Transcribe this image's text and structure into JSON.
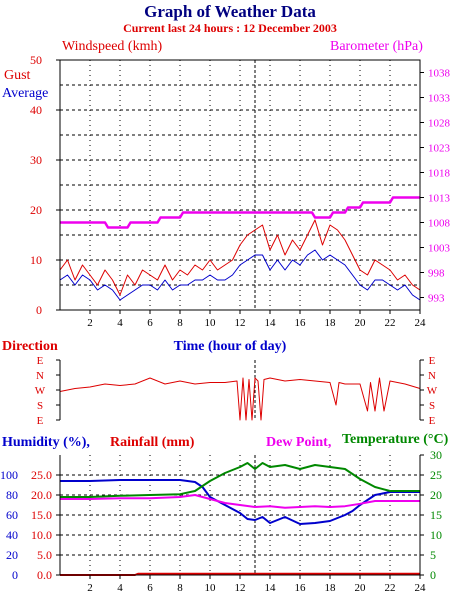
{
  "header": {
    "title": "Graph of Weather Data",
    "subtitle": "Current last 24 hours : 12 December 2003"
  },
  "colors": {
    "red": "#dd0000",
    "blue": "#0000cc",
    "magenta": "#ee00ee",
    "green": "#008800",
    "title_navy": "#000080"
  },
  "chart_data": [
    {
      "type": "line",
      "panel": "wind",
      "title": "",
      "left_label": "Windspeed (kmh)",
      "right_label": "Barometer (hPa)",
      "legend": [
        "Gust",
        "Average"
      ],
      "xlabel": "Time (hour of day)",
      "xlim": [
        0,
        24
      ],
      "x_ticks": [
        2,
        4,
        6,
        8,
        10,
        12,
        14,
        16,
        18,
        20,
        22,
        24
      ],
      "ylim": [
        0,
        50
      ],
      "y_ticks": [
        0,
        10,
        20,
        30,
        40,
        50
      ],
      "y2lim": [
        990.5,
        1040.5
      ],
      "y2_ticks": [
        993,
        998,
        1003,
        1008,
        1013,
        1018,
        1023,
        1028,
        1033,
        1038
      ],
      "grid": true,
      "marker_x": 13,
      "series": [
        {
          "name": "Gust",
          "color": "#dd0000",
          "axis": "left",
          "x": [
            0,
            0.5,
            1,
            1.5,
            2,
            2.5,
            3,
            3.5,
            4,
            4.5,
            5,
            5.5,
            6,
            6.5,
            7,
            7.5,
            8,
            8.5,
            9,
            9.5,
            10,
            10.5,
            11,
            11.5,
            12,
            12.5,
            13,
            13.5,
            14,
            14.5,
            15,
            15.5,
            16,
            16.5,
            17,
            17.5,
            18,
            18.5,
            19,
            19.5,
            20,
            20.5,
            21,
            21.5,
            22,
            22.5,
            23,
            23.5,
            24
          ],
          "values": [
            8,
            10,
            6,
            9,
            7,
            5,
            8,
            6,
            3,
            7,
            5,
            8,
            7,
            6,
            9,
            6,
            8,
            7,
            9,
            8,
            10,
            8,
            9,
            10,
            13,
            15,
            16,
            17,
            12,
            15,
            11,
            14,
            12,
            15,
            18,
            13,
            17,
            16,
            14,
            11,
            8,
            7,
            10,
            9,
            8,
            6,
            7,
            5,
            4
          ]
        },
        {
          "name": "Average",
          "color": "#0000cc",
          "axis": "left",
          "x": [
            0,
            0.5,
            1,
            1.5,
            2,
            2.5,
            3,
            3.5,
            4,
            4.5,
            5,
            5.5,
            6,
            6.5,
            7,
            7.5,
            8,
            8.5,
            9,
            9.5,
            10,
            10.5,
            11,
            11.5,
            12,
            12.5,
            13,
            13.5,
            14,
            14.5,
            15,
            15.5,
            16,
            16.5,
            17,
            17.5,
            18,
            18.5,
            19,
            19.5,
            20,
            20.5,
            21,
            21.5,
            22,
            22.5,
            23,
            23.5,
            24
          ],
          "values": [
            6,
            7,
            5,
            7,
            6,
            4,
            5,
            4,
            2,
            3,
            4,
            5,
            5,
            4,
            6,
            4,
            5,
            5,
            6,
            6,
            7,
            6,
            6,
            7,
            9,
            10,
            11,
            11,
            8,
            10,
            8,
            10,
            9,
            11,
            12,
            10,
            11,
            10,
            9,
            7,
            5,
            4,
            6,
            6,
            5,
            4,
            5,
            3,
            2
          ]
        },
        {
          "name": "Barometer",
          "color": "#ee00ee",
          "axis": "right",
          "x": [
            0,
            3,
            3.2,
            4.5,
            4.7,
            6.5,
            6.7,
            8,
            8.2,
            16.8,
            17,
            18,
            18.2,
            19,
            19.2,
            20,
            20.2,
            22,
            22.2,
            24
          ],
          "values": [
            1008,
            1008,
            1007,
            1007,
            1008,
            1008,
            1009,
            1009,
            1010,
            1010,
            1009,
            1009,
            1010,
            1010,
            1011,
            1011,
            1012,
            1012,
            1013,
            1013
          ]
        }
      ]
    },
    {
      "type": "line",
      "panel": "direction",
      "title": "Direction",
      "left_labels": [
        "E",
        "N",
        "W",
        "S",
        "E"
      ],
      "right_labels": [
        "E",
        "N",
        "W",
        "S",
        "E"
      ],
      "xlim": [
        0,
        24
      ],
      "marker_x": 13,
      "series": [
        {
          "name": "Direction",
          "color": "#dd0000",
          "x": [
            0,
            1,
            2,
            3,
            4,
            5,
            6,
            7,
            8,
            9,
            10,
            11,
            11.8,
            12,
            12.2,
            12.4,
            12.6,
            12.8,
            13,
            13.2,
            13.4,
            13.6,
            14,
            15,
            16,
            17,
            18,
            18.4,
            18.6,
            19,
            20,
            20.5,
            20.7,
            21,
            21.3,
            21.6,
            22,
            23,
            24
          ],
          "values": [
            2.1,
            1.9,
            1.8,
            1.6,
            1.7,
            1.6,
            1.2,
            1.6,
            1.4,
            1.6,
            1.5,
            1.5,
            1.4,
            4,
            1.2,
            4,
            1.3,
            4,
            1.2,
            1.4,
            4,
            1.3,
            1.2,
            1.4,
            1.3,
            1.4,
            1.5,
            3,
            1.5,
            1.6,
            1.6,
            3.4,
            1.5,
            3.4,
            1.2,
            3.4,
            1.4,
            1.6,
            1.9
          ]
        }
      ]
    },
    {
      "type": "line",
      "panel": "humidity",
      "labels": [
        "Humidity (%),",
        "Rainfall (mm)",
        "Dew Point,",
        "Temperature (°C)"
      ],
      "xlim": [
        0,
        24
      ],
      "x_ticks": [
        2,
        4,
        6,
        8,
        10,
        12,
        14,
        16,
        18,
        20,
        22,
        24
      ],
      "humidity_ticks": [
        0,
        20,
        40,
        60,
        80,
        100
      ],
      "rainfall_ticks": [
        0.0,
        5.0,
        10.0,
        15.0,
        20.0,
        25.0
      ],
      "temperature_ticks": [
        0,
        5,
        10,
        15,
        20,
        25,
        30
      ],
      "grid": true,
      "marker_x": 13,
      "series": [
        {
          "name": "Humidity",
          "color": "#0000cc",
          "axis": "humidity",
          "x": [
            0,
            2,
            4,
            6,
            8,
            9,
            9.5,
            10,
            11,
            12,
            12.5,
            13,
            13.5,
            14,
            15,
            16,
            17,
            18,
            19,
            19.5,
            20,
            21,
            22,
            24
          ],
          "values": [
            94,
            94,
            95,
            95,
            95,
            93,
            88,
            78,
            70,
            62,
            56,
            55,
            58,
            52,
            58,
            51,
            52,
            54,
            60,
            64,
            70,
            80,
            83,
            83
          ]
        },
        {
          "name": "Rainfall",
          "color": "#dd0000",
          "axis": "rainfall",
          "x": [
            0,
            5,
            5.2,
            24
          ],
          "values": [
            0,
            0,
            0.3,
            0.3
          ]
        },
        {
          "name": "Dew Point",
          "color": "#ee00ee",
          "axis": "temperature",
          "x": [
            0,
            2,
            4,
            6,
            8,
            9,
            10,
            11,
            12,
            13,
            14,
            15,
            16,
            17,
            18,
            19,
            20,
            21,
            22,
            23,
            24
          ],
          "values": [
            19,
            19,
            19.2,
            19.2,
            19.5,
            20,
            19,
            18,
            17.5,
            17,
            17.2,
            16.8,
            17,
            17.2,
            17,
            17.2,
            17.8,
            18.5,
            18.5,
            18.5,
            18.5
          ]
        },
        {
          "name": "Temperature",
          "color": "#008800",
          "axis": "temperature",
          "x": [
            0,
            2,
            4,
            6,
            8,
            9,
            10,
            11,
            12,
            12.5,
            13,
            13.5,
            14,
            15,
            16,
            17,
            18,
            19,
            20,
            21,
            22,
            24
          ],
          "values": [
            19.5,
            19.5,
            19.8,
            20,
            20.2,
            21,
            23.5,
            25.5,
            27,
            28,
            26.5,
            28,
            27,
            27.5,
            26.5,
            27.5,
            27,
            26.5,
            24,
            22,
            21,
            21
          ]
        }
      ]
    }
  ]
}
